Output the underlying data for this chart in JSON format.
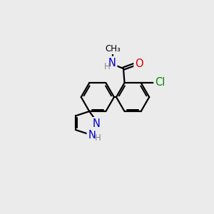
{
  "bg_color": "#ebebeb",
  "bond_color": "#000000",
  "bond_lw": 1.6,
  "atom_colors": {
    "N": "#0000cc",
    "O": "#cc0000",
    "Cl": "#008800",
    "H": "#888888",
    "C": "#000000"
  },
  "font_size": 9.5,
  "fig_size": [
    3.0,
    3.0
  ],
  "dpi": 100,
  "white": "#ebebeb"
}
